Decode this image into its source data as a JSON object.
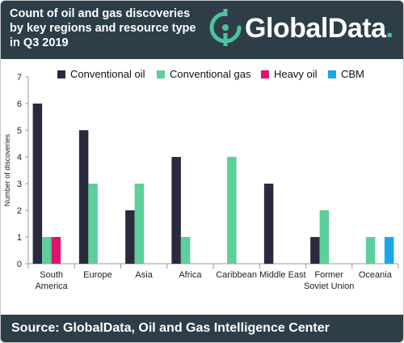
{
  "header": {
    "title_lines": [
      "Count of oil and gas discoveries",
      "by key regions and resource type",
      "in Q3 2019"
    ],
    "brand_name": "GlobalData",
    "brand_dot": ".",
    "brand_icon": "globaldata-logo-icon",
    "background_color": "#2e3e48",
    "accent_color": "#4cc49b"
  },
  "footer": {
    "source_text": "Source:  GlobalData, Oil and Gas Intelligence Center"
  },
  "chart_data": {
    "type": "bar",
    "title": "Count of oil and gas discoveries by key regions and resource type in Q3 2019",
    "ylabel": "Number of discoveries",
    "xlabel": "",
    "ylim": [
      0,
      7
    ],
    "yticks": [
      0,
      1,
      2,
      3,
      4,
      5,
      6,
      7
    ],
    "grid": false,
    "legend_position": "top",
    "categories": [
      [
        "South",
        "America"
      ],
      [
        "Europe"
      ],
      [
        "Asia"
      ],
      [
        "Africa"
      ],
      [
        "Caribbean"
      ],
      [
        "Middle East"
      ],
      [
        "Former",
        "Soviet Union"
      ],
      [
        "Oceania"
      ]
    ],
    "series": [
      {
        "name": "Conventional oil",
        "color": "#2a2a3e",
        "values": [
          6,
          5,
          2,
          4,
          0,
          3,
          1,
          0
        ]
      },
      {
        "name": "Conventional gas",
        "color": "#5ccf9b",
        "values": [
          1,
          3,
          3,
          1,
          4,
          0,
          2,
          1
        ]
      },
      {
        "name": "Heavy oil",
        "color": "#e0116f",
        "values": [
          1,
          0,
          0,
          0,
          0,
          0,
          0,
          0
        ]
      },
      {
        "name": "CBM",
        "color": "#1aa7e8",
        "values": [
          0,
          0,
          0,
          0,
          0,
          0,
          0,
          1
        ]
      }
    ]
  }
}
